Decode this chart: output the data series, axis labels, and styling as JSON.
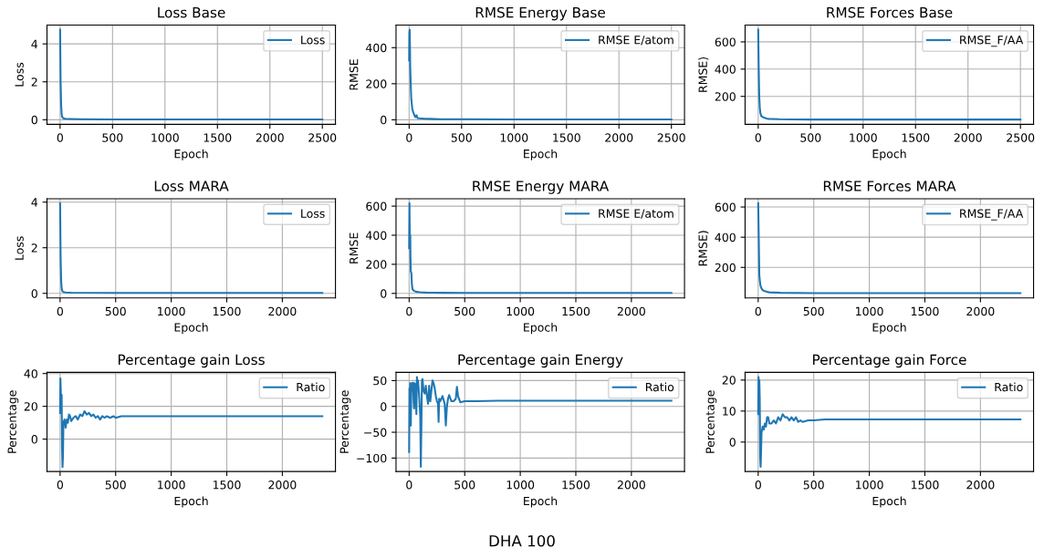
{
  "chart_data": [
    {
      "type": "line",
      "title": "Loss Base",
      "xlabel": "Epoch",
      "ylabel": "Loss",
      "xlim": [
        -125,
        2625
      ],
      "xticks": [
        0,
        500,
        1000,
        1500,
        2000,
        2500
      ],
      "ylim": [
        -0.24,
        4.99
      ],
      "yticks": [
        0,
        2,
        4
      ],
      "grid": true,
      "legend": "top right",
      "series": [
        {
          "name": "Loss",
          "color": "#1f77b4",
          "x": [
            0,
            5,
            10,
            15,
            20,
            30,
            50,
            100,
            200,
            500,
            1000,
            1500,
            2000,
            2500
          ],
          "values": [
            4.75,
            2.0,
            0.8,
            0.3,
            0.15,
            0.08,
            0.05,
            0.04,
            0.03,
            0.02,
            0.02,
            0.02,
            0.02,
            0.02
          ]
        }
      ]
    },
    {
      "type": "line",
      "title": "RMSE Energy Base",
      "xlabel": "Epoch",
      "ylabel": "RMSE",
      "xlim": [
        -125,
        2625
      ],
      "xticks": [
        0,
        500,
        1000,
        1500,
        2000,
        2500
      ],
      "ylim": [
        -25,
        525
      ],
      "yticks": [
        0,
        200,
        400
      ],
      "grid": true,
      "legend": "top right",
      "series": [
        {
          "name": "RMSE E/atom",
          "color": "#1f77b4",
          "x": [
            0,
            2,
            5,
            8,
            10,
            15,
            20,
            30,
            40,
            50,
            60,
            70,
            80,
            100,
            150,
            200,
            250,
            300,
            500,
            1000,
            2500
          ],
          "values": [
            330,
            480,
            500,
            400,
            300,
            200,
            120,
            60,
            40,
            25,
            15,
            25,
            10,
            8,
            6,
            5,
            4,
            3,
            3,
            2,
            2
          ]
        }
      ]
    },
    {
      "type": "line",
      "title": "RMSE Forces Base",
      "xlabel": "Epoch",
      "ylabel": "RMSE)",
      "xlim": [
        -125,
        2625
      ],
      "xticks": [
        0,
        500,
        1000,
        1500,
        2000,
        2500
      ],
      "ylim": [
        -5,
        723
      ],
      "yticks": [
        200,
        400,
        600
      ],
      "grid": true,
      "legend": "top right",
      "series": [
        {
          "name": "RMSE_F/AA",
          "color": "#1f77b4",
          "x": [
            0,
            5,
            10,
            15,
            20,
            30,
            50,
            80,
            100,
            200,
            500,
            1000,
            2500
          ],
          "values": [
            690,
            400,
            200,
            120,
            80,
            55,
            45,
            38,
            35,
            32,
            30,
            30,
            30
          ]
        }
      ]
    },
    {
      "type": "line",
      "title": "Loss MARA",
      "xlabel": "Epoch",
      "ylabel": "Loss",
      "xlim": [
        -118,
        2478
      ],
      "xticks": [
        0,
        500,
        1000,
        1500,
        2000
      ],
      "ylim": [
        -0.2,
        4.15
      ],
      "yticks": [
        0,
        2,
        4
      ],
      "grid": true,
      "legend": "top right",
      "series": [
        {
          "name": "Loss",
          "color": "#1f77b4",
          "x": [
            0,
            5,
            10,
            15,
            20,
            30,
            50,
            100,
            500,
            2360
          ],
          "values": [
            3.95,
            1.5,
            0.5,
            0.2,
            0.1,
            0.06,
            0.04,
            0.03,
            0.02,
            0.02
          ]
        }
      ]
    },
    {
      "type": "line",
      "title": "RMSE Energy MARA",
      "xlabel": "Epoch",
      "ylabel": "RMSE",
      "xlim": [
        -118,
        2478
      ],
      "xticks": [
        0,
        500,
        1000,
        1500,
        2000
      ],
      "ylim": [
        -31,
        651
      ],
      "yticks": [
        0,
        200,
        400,
        600
      ],
      "grid": true,
      "legend": "top right",
      "series": [
        {
          "name": "RMSE E/atom",
          "color": "#1f77b4",
          "x": [
            0,
            3,
            5,
            8,
            10,
            12,
            15,
            20,
            25,
            30,
            40,
            50,
            60,
            80,
            100,
            150,
            200,
            300,
            500,
            1000,
            2360
          ],
          "values": [
            310,
            620,
            450,
            350,
            400,
            250,
            150,
            140,
            60,
            30,
            20,
            15,
            12,
            10,
            8,
            6,
            5,
            4,
            3,
            3,
            3
          ]
        }
      ]
    },
    {
      "type": "line",
      "title": "RMSE Forces MARA",
      "xlabel": "Epoch",
      "ylabel": "RMSE)",
      "xlim": [
        -118,
        2478
      ],
      "xticks": [
        0,
        500,
        1000,
        1500,
        2000
      ],
      "ylim": [
        -2,
        655
      ],
      "yticks": [
        200,
        400,
        600
      ],
      "grid": true,
      "legend": "top right",
      "series": [
        {
          "name": "RMSE_F/AA",
          "color": "#1f77b4",
          "x": [
            0,
            5,
            10,
            15,
            20,
            30,
            40,
            50,
            80,
            100,
            200,
            500,
            1000,
            2360
          ],
          "values": [
            625,
            400,
            150,
            110,
            80,
            60,
            50,
            45,
            38,
            35,
            32,
            30,
            30,
            30
          ]
        }
      ]
    },
    {
      "type": "line",
      "title": "Percentage gain Loss",
      "xlabel": "Epoch",
      "ylabel": "Percentage",
      "xlim": [
        -118,
        2478
      ],
      "xticks": [
        0,
        500,
        1000,
        1500,
        2000
      ],
      "ylim": [
        -19.75,
        40.75
      ],
      "yticks": [
        0,
        20,
        40
      ],
      "grid": true,
      "legend": "top right",
      "series": [
        {
          "name": "Ratio",
          "color": "#1f77b4",
          "x": [
            0,
            3,
            6,
            10,
            14,
            18,
            22,
            26,
            30,
            40,
            50,
            60,
            70,
            80,
            90,
            100,
            120,
            140,
            160,
            180,
            200,
            220,
            240,
            260,
            280,
            300,
            320,
            340,
            360,
            380,
            400,
            420,
            450,
            480,
            500,
            550,
            600,
            800,
            1000,
            1500,
            2000,
            2360
          ],
          "values": [
            16,
            37,
            30,
            20,
            27,
            -5,
            -17,
            -10,
            10,
            12,
            7,
            12,
            10,
            15,
            14,
            11,
            13,
            14,
            12,
            15,
            14,
            17,
            15,
            16,
            14,
            15,
            13,
            14,
            12,
            14,
            13,
            14,
            13,
            14,
            13,
            14,
            14,
            14,
            14,
            14,
            14,
            14
          ]
        }
      ]
    },
    {
      "type": "line",
      "title": "Percentage gain Energy",
      "xlabel": "Epoch",
      "ylabel": "Percentage",
      "xlim": [
        -118,
        2478
      ],
      "xticks": [
        0,
        500,
        1000,
        1500,
        2000
      ],
      "ylim": [
        -126,
        66
      ],
      "yticks": [
        {
          "value": -100,
          "label": "−100"
        },
        {
          "value": -50,
          "label": "−50"
        },
        0,
        50
      ],
      "grid": true,
      "legend": "top right",
      "annotations": [
        "DHA 100"
      ],
      "series": [
        {
          "name": "Ratio",
          "color": "#1f77b4",
          "x": [
            0,
            3,
            6,
            10,
            15,
            20,
            25,
            30,
            35,
            40,
            45,
            50,
            55,
            60,
            65,
            70,
            75,
            80,
            90,
            100,
            105,
            110,
            115,
            120,
            130,
            140,
            150,
            160,
            170,
            180,
            190,
            200,
            210,
            220,
            230,
            240,
            250,
            260,
            265,
            270,
            280,
            300,
            320,
            330,
            340,
            350,
            360,
            380,
            400,
            420,
            430,
            440,
            460,
            500,
            600,
            800,
            1000,
            1500,
            2000,
            2360
          ],
          "values": [
            -88,
            35,
            20,
            45,
            -37,
            45,
            30,
            40,
            46,
            10,
            -4,
            45,
            40,
            30,
            -15,
            57,
            40,
            50,
            20,
            -18,
            -117,
            -40,
            50,
            53,
            30,
            25,
            40,
            20,
            5,
            40,
            10,
            30,
            50,
            45,
            35,
            20,
            10,
            5,
            -30,
            15,
            10,
            20,
            5,
            -37,
            0,
            15,
            22,
            10,
            10,
            15,
            38,
            20,
            8,
            10,
            10,
            11,
            11,
            11,
            11,
            11
          ]
        }
      ]
    },
    {
      "type": "line",
      "title": "Percentage gain Force",
      "xlabel": "Epoch",
      "ylabel": "Percentage",
      "xlim": [
        -118,
        2478
      ],
      "xticks": [
        0,
        500,
        1000,
        1500,
        2000
      ],
      "ylim": [
        -9.5,
        22.5
      ],
      "yticks": [
        0,
        10,
        20
      ],
      "grid": true,
      "legend": "top right",
      "series": [
        {
          "name": "Ratio",
          "color": "#1f77b4",
          "x": [
            0,
            3,
            6,
            10,
            14,
            18,
            22,
            26,
            30,
            40,
            50,
            60,
            70,
            80,
            90,
            100,
            120,
            140,
            160,
            180,
            200,
            220,
            240,
            260,
            280,
            300,
            320,
            340,
            360,
            380,
            400,
            450,
            500,
            600,
            1000,
            2360
          ],
          "values": [
            9,
            21,
            15,
            20,
            14,
            -5,
            -8,
            -3,
            3,
            5,
            4,
            6,
            5,
            8,
            8,
            6,
            6,
            7,
            6,
            8,
            7,
            9,
            8,
            8,
            7,
            8,
            7,
            8,
            6.5,
            7,
            6.5,
            7,
            7,
            7.3,
            7.3,
            7.3
          ]
        }
      ]
    }
  ]
}
